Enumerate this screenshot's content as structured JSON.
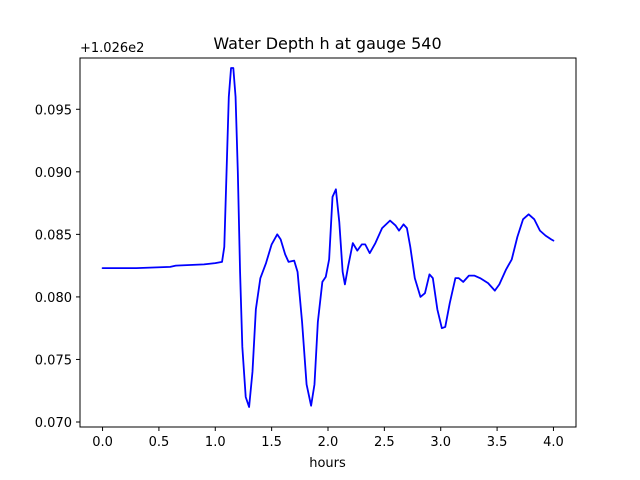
{
  "chart_data": {
    "type": "line",
    "title": "Water Depth h at gauge 540",
    "xlabel": "hours",
    "ylabel": "",
    "y_offset_label": "+1.026e2",
    "y_offset": 102.6,
    "xlim": [
      -0.2,
      4.2
    ],
    "ylim": [
      0.0696,
      0.0991
    ],
    "x_ticks": [
      0.0,
      0.5,
      1.0,
      1.5,
      2.0,
      2.5,
      3.0,
      3.5,
      4.0
    ],
    "x_tick_labels": [
      "0.0",
      "0.5",
      "1.0",
      "1.5",
      "2.0",
      "2.5",
      "3.0",
      "3.5",
      "4.0"
    ],
    "y_ticks": [
      0.07,
      0.075,
      0.08,
      0.085,
      0.09,
      0.095
    ],
    "y_tick_labels": [
      "0.070",
      "0.075",
      "0.080",
      "0.085",
      "0.090",
      "0.095"
    ],
    "grid": false,
    "legend": "none",
    "series": [
      {
        "color": "#0000ff",
        "points": [
          [
            0.0,
            0.0823
          ],
          [
            0.3,
            0.0823
          ],
          [
            0.6,
            0.0824
          ],
          [
            0.65,
            0.0825
          ],
          [
            0.9,
            0.0826
          ],
          [
            1.0,
            0.0827
          ],
          [
            1.06,
            0.0828
          ],
          [
            1.08,
            0.084
          ],
          [
            1.1,
            0.09
          ],
          [
            1.12,
            0.096
          ],
          [
            1.14,
            0.0983
          ],
          [
            1.16,
            0.0983
          ],
          [
            1.18,
            0.096
          ],
          [
            1.2,
            0.09
          ],
          [
            1.22,
            0.082
          ],
          [
            1.24,
            0.076
          ],
          [
            1.27,
            0.072
          ],
          [
            1.3,
            0.0712
          ],
          [
            1.33,
            0.074
          ],
          [
            1.36,
            0.079
          ],
          [
            1.4,
            0.0815
          ],
          [
            1.45,
            0.0827
          ],
          [
            1.5,
            0.0842
          ],
          [
            1.55,
            0.085
          ],
          [
            1.58,
            0.0846
          ],
          [
            1.62,
            0.0834
          ],
          [
            1.65,
            0.0828
          ],
          [
            1.7,
            0.0829
          ],
          [
            1.73,
            0.082
          ],
          [
            1.77,
            0.078
          ],
          [
            1.81,
            0.073
          ],
          [
            1.85,
            0.0713
          ],
          [
            1.88,
            0.073
          ],
          [
            1.91,
            0.078
          ],
          [
            1.95,
            0.0812
          ],
          [
            1.98,
            0.0816
          ],
          [
            2.01,
            0.083
          ],
          [
            2.04,
            0.088
          ],
          [
            2.07,
            0.0886
          ],
          [
            2.1,
            0.086
          ],
          [
            2.13,
            0.082
          ],
          [
            2.15,
            0.081
          ],
          [
            2.18,
            0.0825
          ],
          [
            2.22,
            0.0843
          ],
          [
            2.26,
            0.0837
          ],
          [
            2.3,
            0.0842
          ],
          [
            2.33,
            0.0842
          ],
          [
            2.37,
            0.0835
          ],
          [
            2.42,
            0.0843
          ],
          [
            2.48,
            0.0855
          ],
          [
            2.55,
            0.0861
          ],
          [
            2.6,
            0.0857
          ],
          [
            2.63,
            0.0853
          ],
          [
            2.67,
            0.0858
          ],
          [
            2.7,
            0.0855
          ],
          [
            2.73,
            0.084
          ],
          [
            2.77,
            0.0815
          ],
          [
            2.82,
            0.08
          ],
          [
            2.86,
            0.0803
          ],
          [
            2.9,
            0.0818
          ],
          [
            2.93,
            0.0815
          ],
          [
            2.97,
            0.079
          ],
          [
            3.01,
            0.0775
          ],
          [
            3.04,
            0.0776
          ],
          [
            3.08,
            0.0795
          ],
          [
            3.13,
            0.0815
          ],
          [
            3.16,
            0.0815
          ],
          [
            3.2,
            0.0812
          ],
          [
            3.25,
            0.0817
          ],
          [
            3.3,
            0.0817
          ],
          [
            3.35,
            0.0815
          ],
          [
            3.42,
            0.0811
          ],
          [
            3.48,
            0.0805
          ],
          [
            3.52,
            0.081
          ],
          [
            3.58,
            0.0822
          ],
          [
            3.63,
            0.083
          ],
          [
            3.68,
            0.0848
          ],
          [
            3.73,
            0.0862
          ],
          [
            3.78,
            0.0866
          ],
          [
            3.83,
            0.0862
          ],
          [
            3.88,
            0.0853
          ],
          [
            3.93,
            0.0849
          ],
          [
            3.98,
            0.0846
          ],
          [
            4.0,
            0.0845
          ]
        ]
      }
    ]
  }
}
